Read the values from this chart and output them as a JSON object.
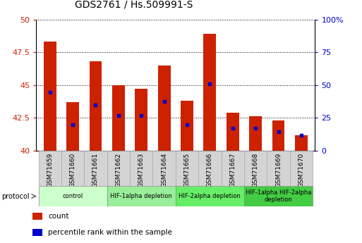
{
  "title": "GDS2761 / Hs.509991-S",
  "samples": [
    "GSM71659",
    "GSM71660",
    "GSM71661",
    "GSM71662",
    "GSM71663",
    "GSM71664",
    "GSM71665",
    "GSM71666",
    "GSM71667",
    "GSM71668",
    "GSM71669",
    "GSM71670"
  ],
  "counts": [
    48.3,
    43.7,
    46.8,
    45.0,
    44.7,
    46.5,
    43.8,
    48.9,
    42.9,
    42.6,
    42.3,
    41.2
  ],
  "percentile_ranks_pct": [
    44.5,
    20.0,
    35.0,
    27.0,
    27.0,
    37.5,
    20.0,
    51.0,
    17.0,
    17.0,
    14.5,
    11.5
  ],
  "ymin": 40,
  "ymax": 50,
  "yticks": [
    40,
    42.5,
    45,
    47.5,
    50
  ],
  "y2min": 0,
  "y2max": 100,
  "y2ticks": [
    0,
    25,
    50,
    75,
    100
  ],
  "y2ticklabels": [
    "0",
    "25",
    "50",
    "75",
    "100%"
  ],
  "bar_color": "#cc2200",
  "blue_color": "#0000cc",
  "bar_width": 0.55,
  "group_spans": [
    {
      "label": "control",
      "start": 0,
      "end": 2,
      "color": "#ccffcc"
    },
    {
      "label": "HIF-1alpha depletion",
      "start": 3,
      "end": 5,
      "color": "#99ee99"
    },
    {
      "label": "HIF-2alpha depletion",
      "start": 6,
      "end": 8,
      "color": "#66ee66"
    },
    {
      "label": "HIF-1alpha HIF-2alpha\ndepletion",
      "start": 9,
      "end": 11,
      "color": "#44cc44"
    }
  ],
  "tick_bg_color": "#d4d4d4",
  "tick_border_color": "#aaaaaa"
}
